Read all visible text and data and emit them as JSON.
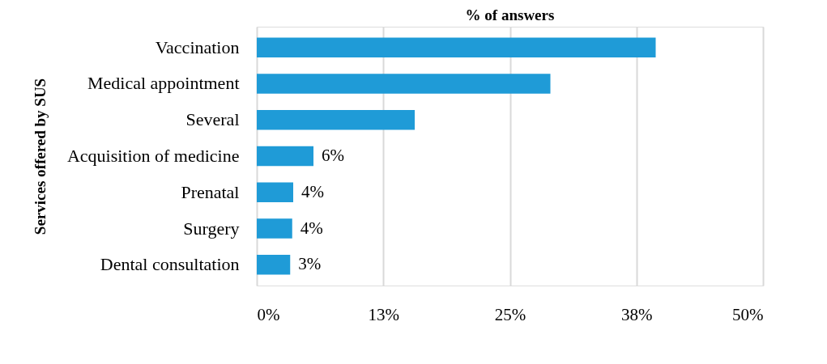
{
  "chart_data": {
    "type": "bar",
    "orientation": "horizontal",
    "title": "% of answers",
    "ylabel": "Services offered by SUS",
    "categories": [
      "Vaccination",
      "Medical appointment",
      "Several",
      "Acquisition of medicine",
      "Prenatal",
      "Surgery",
      "Dental consultation"
    ],
    "values": [
      39.4,
      29.0,
      15.6,
      5.6,
      3.6,
      3.5,
      3.3
    ],
    "value_labels": [
      null,
      null,
      null,
      "6%",
      "4%",
      "4%",
      "3%"
    ],
    "color": "#1f9bd7",
    "xlim": [
      0,
      50
    ],
    "xticks": [
      {
        "value": 0,
        "label": "0%"
      },
      {
        "value": 12.5,
        "label": "13%"
      },
      {
        "value": 25,
        "label": "25%"
      },
      {
        "value": 37.5,
        "label": "38%"
      },
      {
        "value": 50,
        "label": "50%"
      }
    ],
    "grid": "x"
  }
}
